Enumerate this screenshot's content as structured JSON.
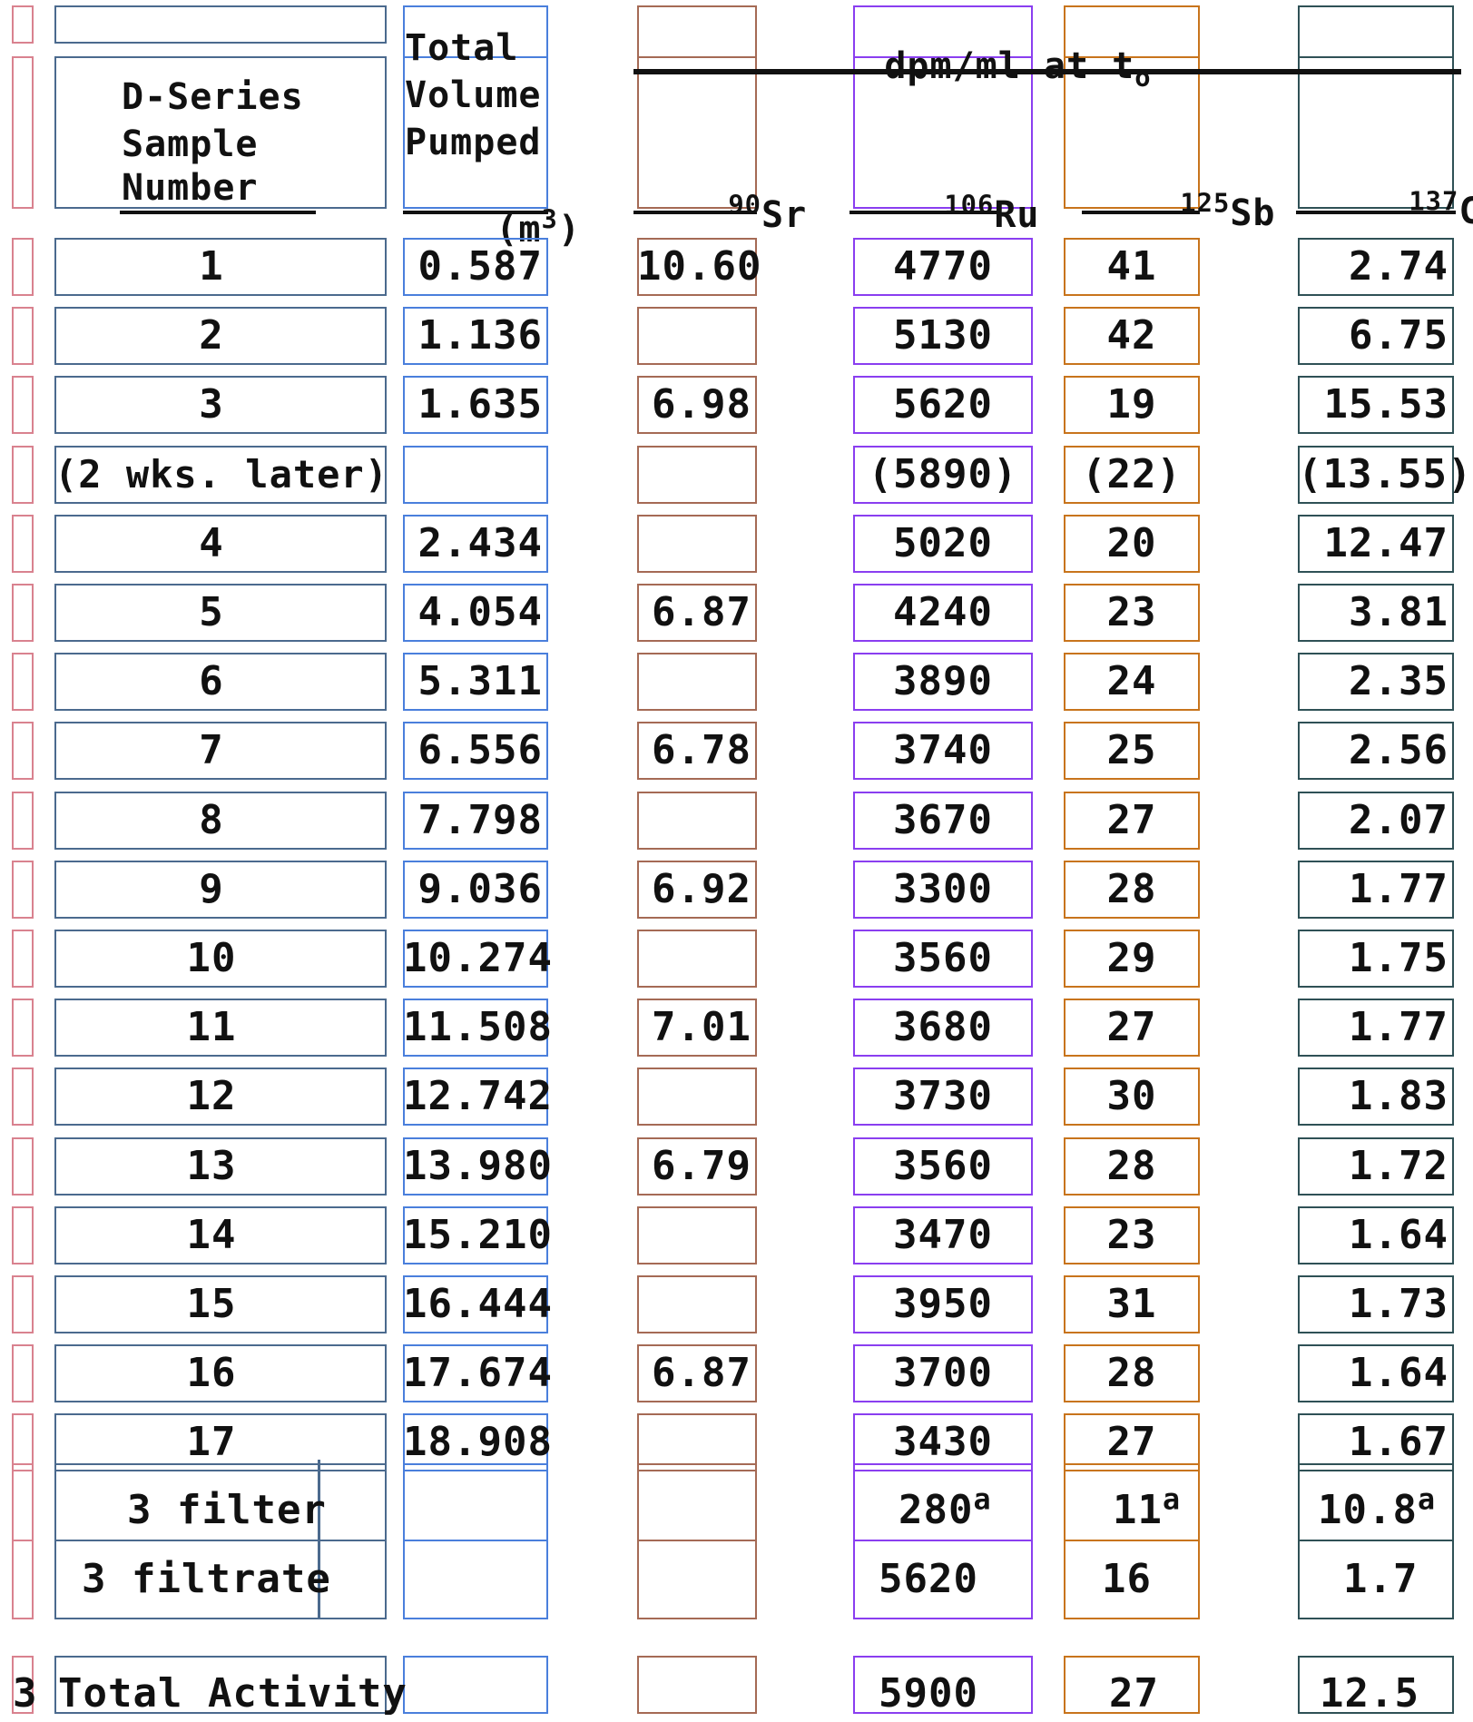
{
  "header": {
    "dpm": "dpm/ml at t",
    "dpm_sub": "o",
    "sample": [
      "D-Series",
      "Sample",
      "Number"
    ],
    "volume": [
      "Total",
      "Volume",
      "Pumped",
      "(m"
    ],
    "volume_sup": "3",
    "volume_end": ")",
    "sr": {
      "sup": "90",
      "base": "Sr"
    },
    "ru": {
      "sup": "106",
      "base": "Ru"
    },
    "sb": {
      "sup": "125",
      "base": "Sb"
    },
    "cs": {
      "sup": "137",
      "base": "Cs"
    }
  },
  "rows": [
    {
      "sample": "1",
      "volume": "0.587",
      "sr": "10.60",
      "ru": "4770",
      "sb": "41",
      "cs": "2.74"
    },
    {
      "sample": "2",
      "volume": "1.136",
      "sr": "",
      "ru": "5130",
      "sb": "42",
      "cs": "6.75"
    },
    {
      "sample": "3",
      "volume": "1.635",
      "sr": "6.98",
      "ru": "5620",
      "sb": "19",
      "cs": "15.53"
    },
    {
      "sample": "(2 wks. later)",
      "volume": "",
      "sr": "",
      "ru": "(5890)",
      "sb": "(22)",
      "cs": "(13.55)"
    },
    {
      "sample": "4",
      "volume": "2.434",
      "sr": "",
      "ru": "5020",
      "sb": "20",
      "cs": "12.47"
    },
    {
      "sample": "5",
      "volume": "4.054",
      "sr": "6.87",
      "ru": "4240",
      "sb": "23",
      "cs": "3.81"
    },
    {
      "sample": "6",
      "volume": "5.311",
      "sr": "",
      "ru": "3890",
      "sb": "24",
      "cs": "2.35"
    },
    {
      "sample": "7",
      "volume": "6.556",
      "sr": "6.78",
      "ru": "3740",
      "sb": "25",
      "cs": "2.56"
    },
    {
      "sample": "8",
      "volume": "7.798",
      "sr": "",
      "ru": "3670",
      "sb": "27",
      "cs": "2.07"
    },
    {
      "sample": "9",
      "volume": "9.036",
      "sr": "6.92",
      "ru": "3300",
      "sb": "28",
      "cs": "1.77"
    },
    {
      "sample": "10",
      "volume": "10.274",
      "sr": "",
      "ru": "3560",
      "sb": "29",
      "cs": "1.75"
    },
    {
      "sample": "11",
      "volume": "11.508",
      "sr": "7.01",
      "ru": "3680",
      "sb": "27",
      "cs": "1.77"
    },
    {
      "sample": "12",
      "volume": "12.742",
      "sr": "",
      "ru": "3730",
      "sb": "30",
      "cs": "1.83"
    },
    {
      "sample": "13",
      "volume": "13.980",
      "sr": "6.79",
      "ru": "3560",
      "sb": "28",
      "cs": "1.72"
    },
    {
      "sample": "14",
      "volume": "15.210",
      "sr": "",
      "ru": "3470",
      "sb": "23",
      "cs": "1.64"
    },
    {
      "sample": "15",
      "volume": "16.444",
      "sr": "",
      "ru": "3950",
      "sb": "31",
      "cs": "1.73"
    },
    {
      "sample": "16",
      "volume": "17.674",
      "sr": "6.87",
      "ru": "3700",
      "sb": "28",
      "cs": "1.64"
    },
    {
      "sample": "17",
      "volume": "18.908",
      "sr": "",
      "ru": "3430",
      "sb": "27",
      "cs": "1.67"
    }
  ],
  "filter": {
    "sample": "3 filter",
    "ru": "280",
    "sb": "11",
    "cs": "10.8",
    "note": "a"
  },
  "filtrate": {
    "sample": "3 filtrate",
    "ru": "5620",
    "sb": "16",
    "cs": "1.7"
  },
  "total": {
    "index": "3",
    "label": "Total Activity",
    "ru": "5900",
    "sb": "27",
    "cs": "12.5"
  },
  "colors": {
    "index": "#d9828f",
    "sample": "#4b6a8e",
    "volume": "#4a7fdc",
    "sr": "#a56a55",
    "ru": "#8a3ef0",
    "sb": "#c8741c",
    "cs": "#2f5156",
    "ink": "#111111"
  }
}
